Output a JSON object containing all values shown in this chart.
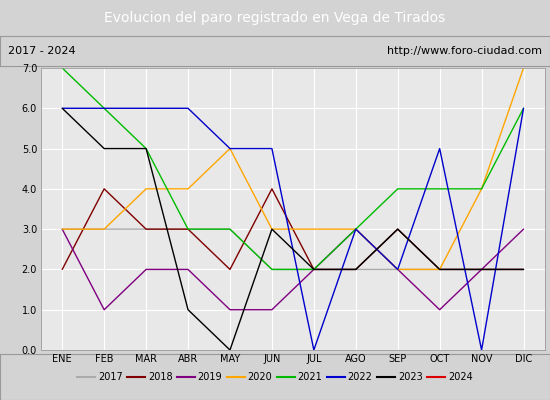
{
  "title": "Evolucion del paro registrado en Vega de Tirados",
  "subtitle_left": "2017 - 2024",
  "subtitle_right": "http://www.foro-ciudad.com",
  "ylim": [
    0.0,
    7.0
  ],
  "yticks": [
    0.0,
    1.0,
    2.0,
    3.0,
    4.0,
    5.0,
    6.0,
    7.0
  ],
  "months": [
    "ENE",
    "FEB",
    "MAR",
    "ABR",
    "MAY",
    "JUN",
    "JUL",
    "AGO",
    "SEP",
    "OCT",
    "NOV",
    "DIC"
  ],
  "series": {
    "2017": {
      "color": "#aaaaaa",
      "values": [
        3.0,
        3.0,
        3.0,
        3.0,
        3.0,
        2.0,
        2.0,
        2.0,
        2.0,
        2.0,
        2.0,
        2.0
      ]
    },
    "2018": {
      "color": "#800000",
      "values": [
        2.0,
        4.0,
        3.0,
        3.0,
        2.0,
        4.0,
        2.0,
        2.0,
        3.0,
        2.0,
        2.0,
        2.0
      ]
    },
    "2019": {
      "color": "#800080",
      "values": [
        3.0,
        1.0,
        2.0,
        2.0,
        1.0,
        1.0,
        2.0,
        3.0,
        2.0,
        1.0,
        2.0,
        3.0
      ]
    },
    "2020": {
      "color": "#ffa500",
      "values": [
        3.0,
        3.0,
        4.0,
        4.0,
        5.0,
        3.0,
        3.0,
        3.0,
        2.0,
        2.0,
        4.0,
        7.0
      ]
    },
    "2021": {
      "color": "#00bb00",
      "values": [
        7.0,
        6.0,
        5.0,
        3.0,
        3.0,
        2.0,
        2.0,
        3.0,
        4.0,
        4.0,
        4.0,
        6.0
      ]
    },
    "2022": {
      "color": "#0000cc",
      "values": [
        6.0,
        6.0,
        6.0,
        6.0,
        5.0,
        5.0,
        0.0,
        3.0,
        2.0,
        5.0,
        0.0,
        6.0
      ]
    },
    "2023": {
      "color": "#000000",
      "values": [
        6.0,
        5.0,
        5.0,
        1.0,
        0.0,
        3.0,
        2.0,
        2.0,
        3.0,
        2.0,
        2.0,
        2.0
      ]
    },
    "2024": {
      "color": "#dd0000",
      "values": [
        3.0,
        null,
        null,
        null,
        null,
        null,
        null,
        null,
        null,
        null,
        null,
        null
      ]
    }
  },
  "background_color": "#d3d3d3",
  "plot_bg_color": "#e8e8e8",
  "title_bg_color": "#4472c4",
  "title_color": "#ffffff",
  "grid_color": "#ffffff",
  "subtitle_border_color": "#999999",
  "legend_border_color": "#999999"
}
